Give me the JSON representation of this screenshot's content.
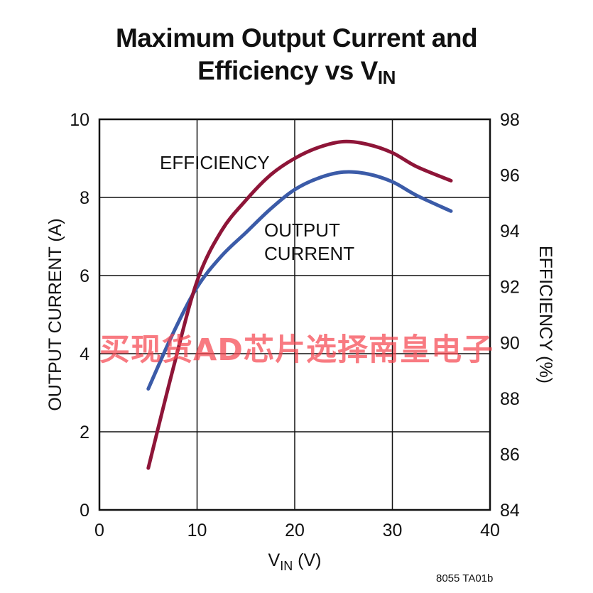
{
  "chart_data": {
    "type": "line",
    "title_line1": "Maximum Output Current and",
    "title_line2_main": "Efficiency vs V",
    "title_line2_sub": "IN",
    "xlabel_main": "V",
    "xlabel_sub": "IN",
    "xlabel_unit": " (V)",
    "ylabel_left": "OUTPUT CURRENT (A)",
    "ylabel_right": "EFFICIENCY (%)",
    "xlim": [
      0,
      40
    ],
    "ylim_left": [
      0,
      10
    ],
    "ylim_right": [
      84,
      98
    ],
    "x_ticks": [
      "0",
      "10",
      "20",
      "30",
      "40"
    ],
    "y_left_ticks": [
      "0",
      "2",
      "4",
      "6",
      "8",
      "10"
    ],
    "y_right_ticks": [
      "84",
      "86",
      "88",
      "90",
      "92",
      "94",
      "96",
      "98"
    ],
    "grid": true,
    "series": [
      {
        "name": "OUTPUT CURRENT",
        "axis": "left",
        "color": "#3b5ba8",
        "x": [
          5,
          7.5,
          10,
          12.5,
          15,
          17.5,
          20,
          22.5,
          25,
          27.5,
          30,
          32.5,
          36
        ],
        "y": [
          3.1,
          4.5,
          5.7,
          6.5,
          7.1,
          7.7,
          8.2,
          8.5,
          8.65,
          8.6,
          8.4,
          8.05,
          7.65
        ]
      },
      {
        "name": "EFFICIENCY",
        "axis": "right",
        "color": "#8e1538",
        "x": [
          5,
          7.5,
          10,
          12.5,
          15,
          17.5,
          20,
          22.5,
          25,
          27.5,
          30,
          32.5,
          36
        ],
        "y": [
          85.5,
          89.0,
          92.2,
          94.0,
          95.1,
          96.0,
          96.6,
          97.0,
          97.2,
          97.1,
          96.8,
          96.3,
          95.8
        ]
      }
    ],
    "annotations": {
      "efficiency": "EFFICIENCY",
      "current_line1": "OUTPUT",
      "current_line2": "CURRENT"
    }
  },
  "watermark": "买现货AD芯片选择南皇电子",
  "figure_code": "8055 TA01b"
}
